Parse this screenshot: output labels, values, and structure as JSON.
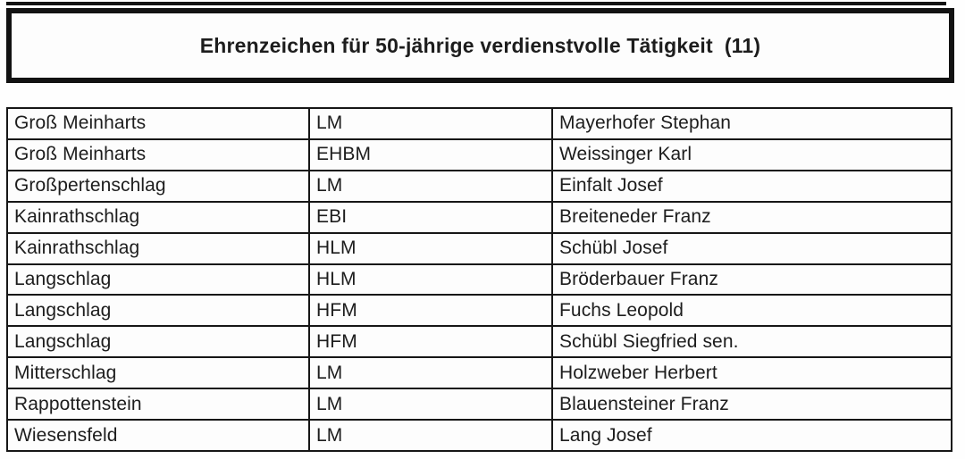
{
  "page": {
    "background": "#fefefe",
    "text_color": "#1d1d1d",
    "border_color": "#121212"
  },
  "header": {
    "title": "Ehrenzeichen für 50-jährige verdienstvolle Tätigkeit",
    "count": "(11)"
  },
  "table": {
    "rows": [
      [
        "Groß Meinharts",
        "LM",
        "Mayerhofer Stephan"
      ],
      [
        "Groß Meinharts",
        "EHBM",
        "Weissinger Karl"
      ],
      [
        "Großpertenschlag",
        "LM",
        "Einfalt Josef"
      ],
      [
        "Kainrathschlag",
        "EBI",
        "Breiteneder Franz"
      ],
      [
        "Kainrathschlag",
        "HLM",
        "Schübl Josef"
      ],
      [
        "Langschlag",
        "HLM",
        "Bröderbauer Franz"
      ],
      [
        "Langschlag",
        "HFM",
        "Fuchs Leopold"
      ],
      [
        "Langschlag",
        "HFM",
        "Schübl Siegfried sen."
      ],
      [
        "Mitterschlag",
        "LM",
        "Holzweber Herbert"
      ],
      [
        "Rappottenstein",
        "LM",
        "Blauensteiner Franz"
      ],
      [
        "Wiesensfeld",
        "LM",
        "Lang Josef"
      ]
    ]
  }
}
